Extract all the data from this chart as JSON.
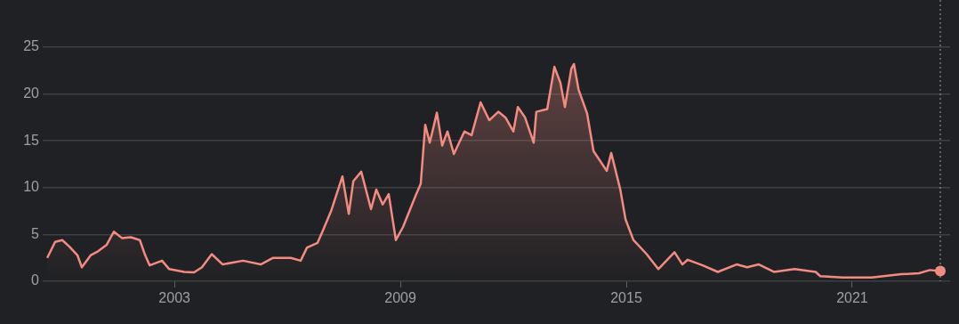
{
  "chart_data": {
    "type": "area",
    "x": [
      1999.62,
      1999.83,
      2000.02,
      2000.21,
      2000.42,
      2000.54,
      2000.78,
      2000.97,
      2001.2,
      2001.39,
      2001.61,
      2001.84,
      2002.08,
      2002.22,
      2002.34,
      2002.67,
      2002.86,
      2003.26,
      2003.52,
      2003.73,
      2003.99,
      2004.28,
      2004.82,
      2005.29,
      2005.62,
      2006.09,
      2006.35,
      2006.52,
      2006.8,
      2006.95,
      2007.16,
      2007.46,
      2007.63,
      2007.75,
      2007.96,
      2008.22,
      2008.36,
      2008.53,
      2008.69,
      2008.88,
      2009.07,
      2009.4,
      2009.54,
      2009.66,
      2009.78,
      2009.97,
      2010.11,
      2010.25,
      2010.42,
      2010.7,
      2010.89,
      2011.13,
      2011.36,
      2011.6,
      2011.79,
      2012.0,
      2012.12,
      2012.31,
      2012.54,
      2012.61,
      2012.9,
      2013.09,
      2013.25,
      2013.37,
      2013.54,
      2013.61,
      2013.73,
      2013.96,
      2014.13,
      2014.48,
      2014.6,
      2014.84,
      2014.98,
      2015.19,
      2015.54,
      2015.85,
      2016.28,
      2016.49,
      2016.63,
      2017.03,
      2017.43,
      2017.93,
      2018.21,
      2018.52,
      2018.92,
      2019.47,
      2020.03,
      2020.15,
      2020.74,
      2021.52,
      2022.3,
      2022.77,
      2023.06,
      2023.34
    ],
    "series": [
      {
        "color": "#f28b82",
        "values": [
          2.5,
          4.2,
          4.4,
          3.7,
          2.8,
          1.5,
          2.8,
          3.2,
          3.9,
          5.3,
          4.6,
          4.7,
          4.4,
          2.8,
          1.7,
          2.2,
          1.3,
          1.0,
          0.95,
          1.5,
          2.9,
          1.8,
          2.2,
          1.8,
          2.5,
          2.5,
          2.2,
          3.6,
          4.1,
          5.5,
          7.5,
          11.2,
          7.2,
          10.7,
          11.7,
          7.7,
          9.8,
          8.2,
          9.3,
          4.4,
          5.8,
          9.1,
          10.4,
          16.7,
          14.8,
          18.0,
          14.5,
          16.0,
          13.6,
          16.0,
          15.6,
          19.1,
          17.2,
          18.1,
          17.5,
          16.0,
          18.6,
          17.5,
          14.8,
          18.1,
          18.4,
          22.9,
          21.2,
          18.6,
          22.7,
          23.2,
          20.5,
          17.9,
          13.9,
          11.8,
          13.7,
          9.8,
          6.6,
          4.4,
          2.9,
          1.3,
          3.1,
          1.8,
          2.3,
          1.7,
          1.0,
          1.8,
          1.5,
          1.8,
          1.0,
          1.3,
          1.0,
          0.55,
          0.4,
          0.4,
          0.75,
          0.85,
          1.2,
          1.1
        ]
      }
    ],
    "xlim": [
      1999.5,
      2023.6
    ],
    "xticks": [
      2003,
      2009,
      2015,
      2021
    ],
    "ylim": [
      0,
      25
    ],
    "yticks": [
      0,
      5,
      10,
      15,
      20,
      25
    ],
    "grid": "y",
    "legend": false,
    "ref_lines": [
      {
        "axis": "x",
        "value": 2023.34,
        "color": "#9aa0a6",
        "line_style": "dotted"
      }
    ]
  }
}
